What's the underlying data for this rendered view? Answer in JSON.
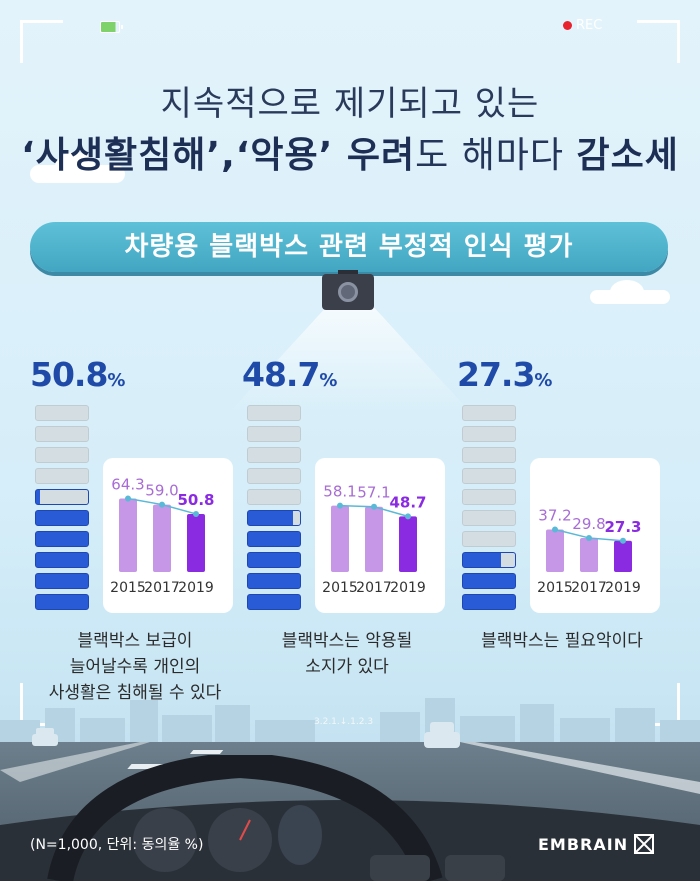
{
  "hud": {
    "rec_label": "REC"
  },
  "title": {
    "line1": "지속적으로 제기되고 있는",
    "line2_part_bold1": "‘사생활침해’,‘악용’ 우려",
    "line2_mid": "도 해마다 ",
    "line2_part_bold2": "감소세"
  },
  "banner": {
    "text": "차량용 블랙박스 관련 부정적 인식 평가"
  },
  "chart_data": [
    {
      "type": "bar",
      "headline": "50.8",
      "unit": "%",
      "categories": [
        "2015",
        "2017",
        "2019"
      ],
      "values": [
        64.3,
        59.0,
        50.8
      ],
      "value_labels": [
        "64.3",
        "59.0",
        "50.8"
      ],
      "caption": [
        "블랙박스 보급이",
        "늘어날수록 개인의",
        "사생활은 침해될 수 있다"
      ],
      "colors": {
        "bar": "#c597e6",
        "highlight": "#8a2be2",
        "line": "#5ab9d6"
      }
    },
    {
      "type": "bar",
      "headline": "48.7",
      "unit": "%",
      "categories": [
        "2015",
        "2017",
        "2019"
      ],
      "values": [
        58.1,
        57.1,
        48.7
      ],
      "value_labels": [
        "58.1",
        "57.1",
        "48.7"
      ],
      "caption": [
        "블랙박스는 악용될",
        "소지가 있다"
      ],
      "colors": {
        "bar": "#c597e6",
        "highlight": "#8a2be2",
        "line": "#5ab9d6"
      }
    },
    {
      "type": "bar",
      "headline": "27.3",
      "unit": "%",
      "categories": [
        "2015",
        "2017",
        "2019"
      ],
      "values": [
        37.2,
        29.8,
        27.3
      ],
      "value_labels": [
        "37.2",
        "29.8",
        "27.3"
      ],
      "caption": [
        "블랙박스는 필요악이다"
      ],
      "colors": {
        "bar": "#c597e6",
        "highlight": "#8a2be2",
        "line": "#5ab9d6"
      }
    }
  ],
  "footer": {
    "note": "(N=1,000, 단위: 동의율 %)",
    "brand": "EMBRAIN",
    "road_text": "3.2.1.↓.1.2.3"
  }
}
